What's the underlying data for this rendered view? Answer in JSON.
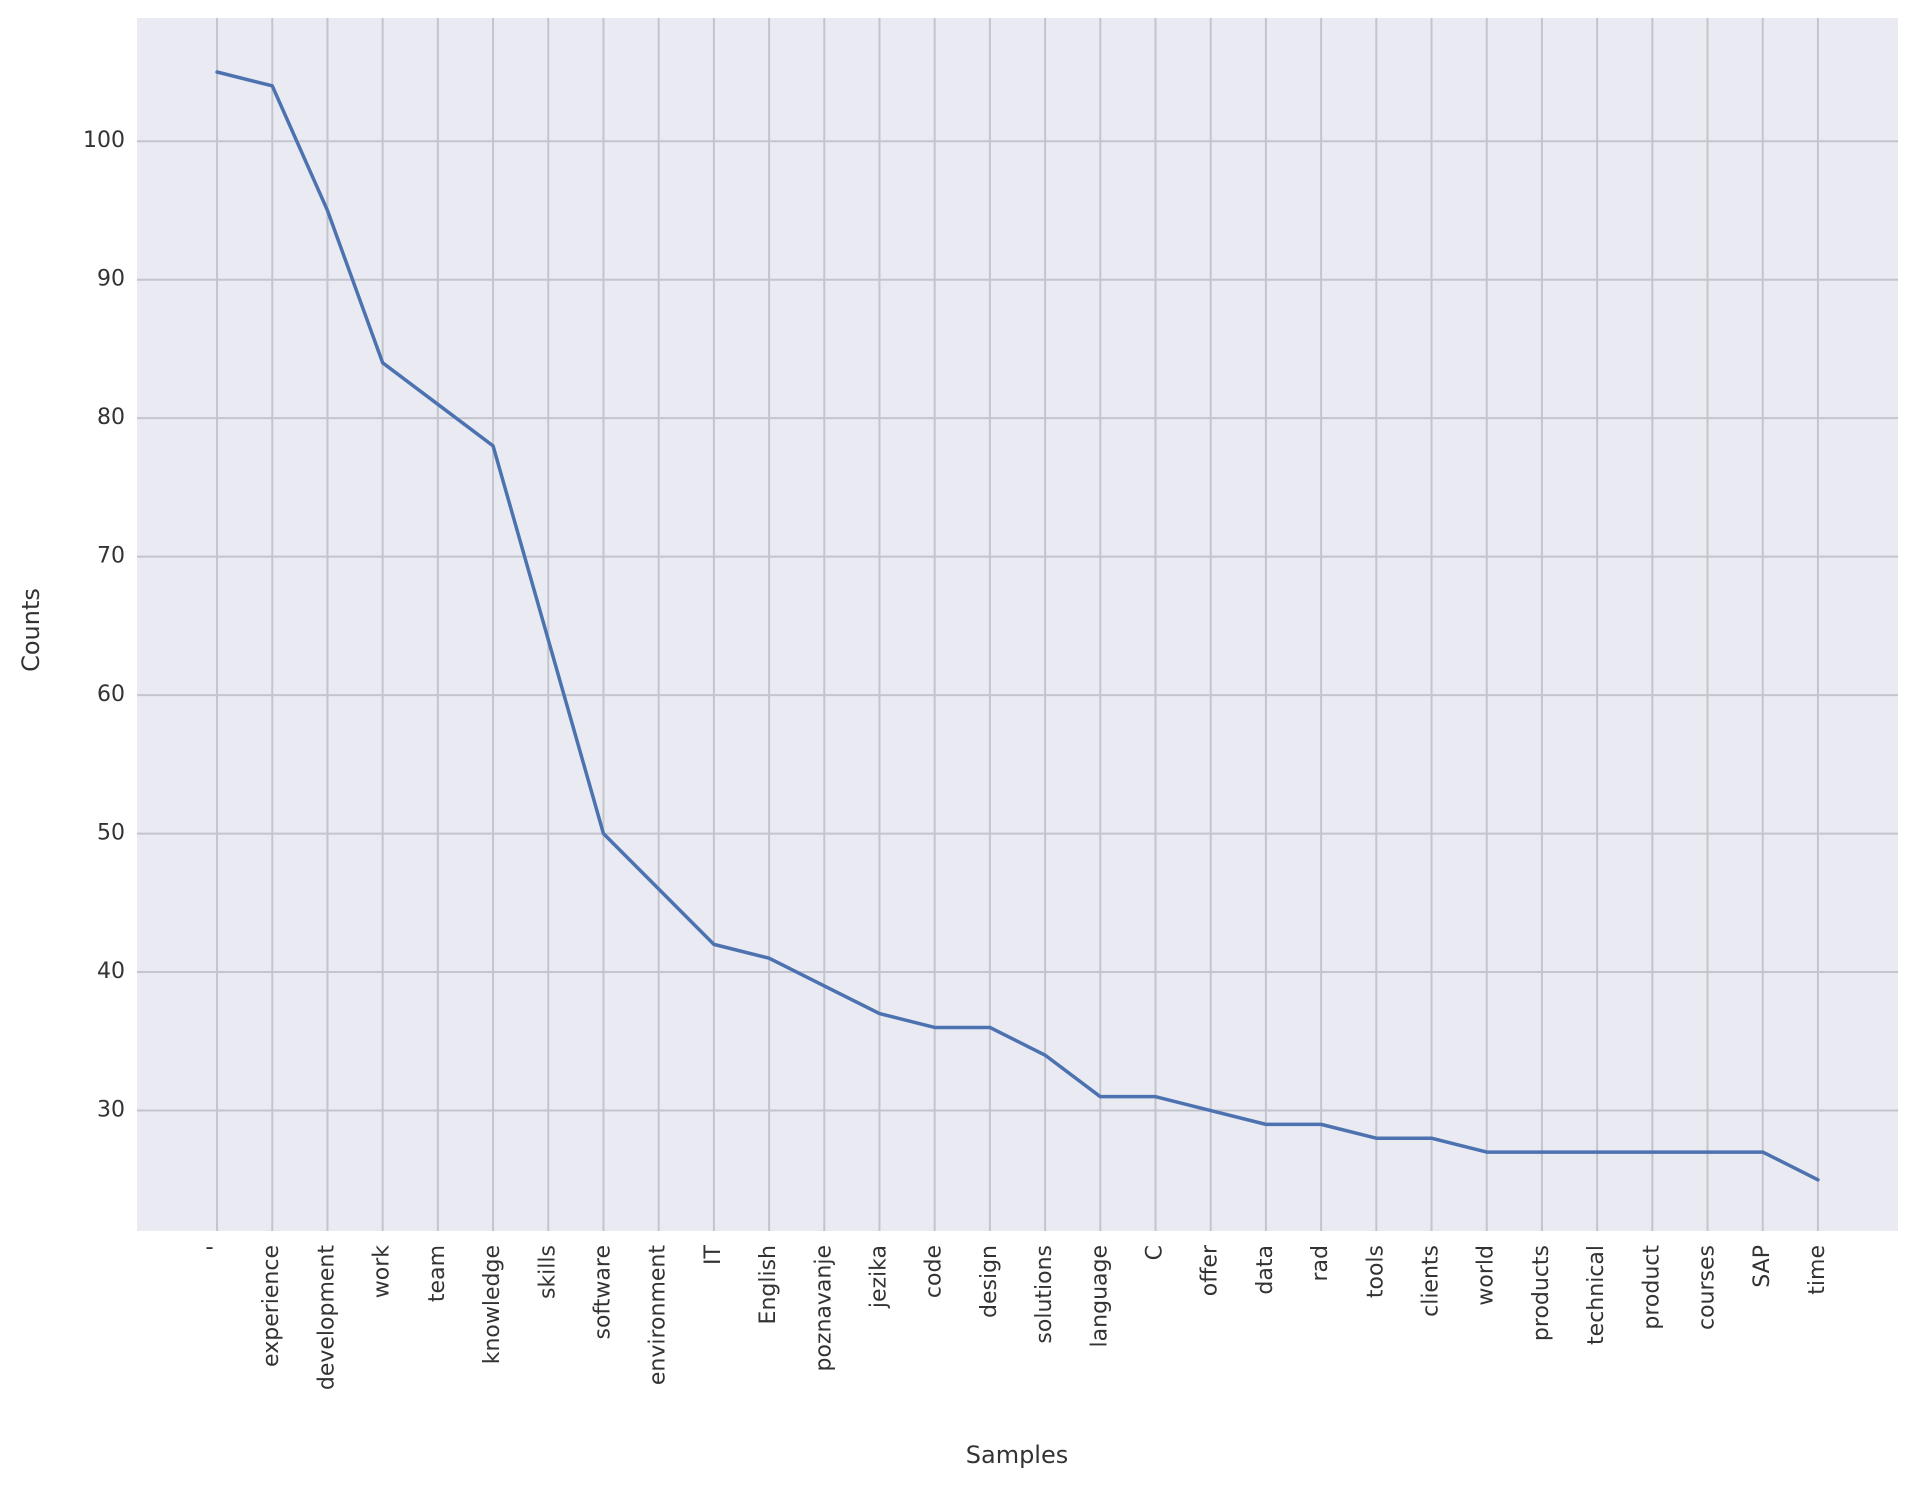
{
  "chart_data": {
    "type": "line",
    "x_label": "Samples",
    "y_label": "Counts",
    "categories": [
      "'",
      "experience",
      "development",
      "work",
      "team",
      "knowledge",
      "skills",
      "software",
      "environment",
      "IT",
      "English",
      "poznavanje",
      "jezika",
      "code",
      "design",
      "solutions",
      "language",
      "C",
      "offer",
      "data",
      "rad",
      "tools",
      "clients",
      "world",
      "products",
      "technical",
      "product",
      "courses",
      "SAP",
      "time"
    ],
    "values": [
      105,
      104,
      95,
      84,
      81,
      78,
      64,
      50,
      46,
      42,
      41,
      39,
      37,
      36,
      36,
      34,
      31,
      31,
      30,
      29,
      29,
      28,
      28,
      27,
      27,
      27,
      27,
      27,
      27,
      25
    ],
    "color": "#4c72b0",
    "ylim": [
      21.3,
      108.9
    ],
    "yticks": [
      30,
      40,
      50,
      60,
      70,
      80,
      90,
      100
    ],
    "grid": true
  }
}
